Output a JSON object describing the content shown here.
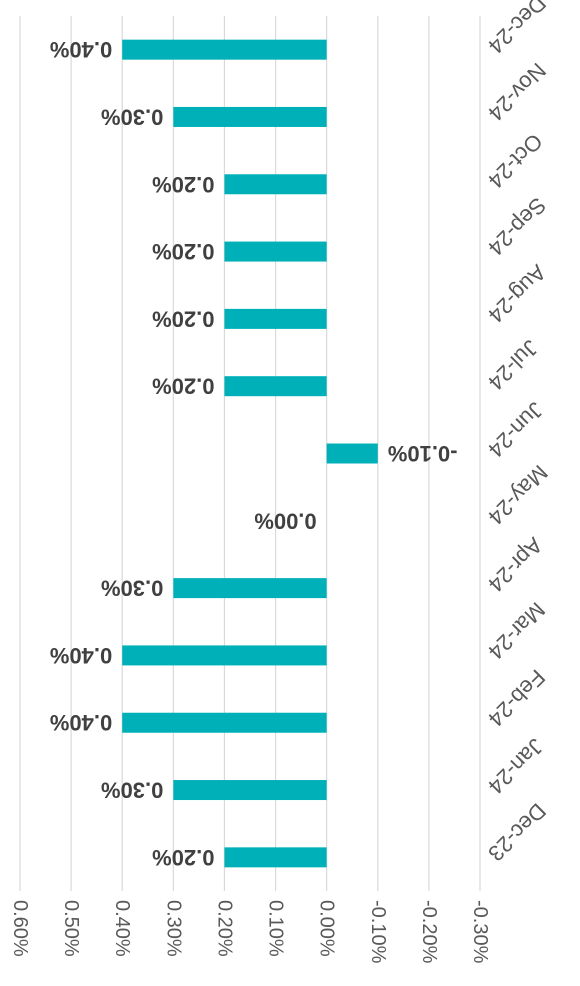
{
  "chart_data": {
    "type": "bar",
    "orientation": "horizontal",
    "rendering": "rotated 180 degrees",
    "categories": [
      "Dec-23",
      "Jan-24",
      "Feb-24",
      "Mar-24",
      "Apr-24",
      "May-24",
      "Jun-24",
      "Jul-24",
      "Aug-24",
      "Sep-24",
      "Oct-24",
      "Nov-24",
      "Dec-24"
    ],
    "values": [
      0.2,
      0.3,
      0.4,
      0.4,
      0.3,
      0.0,
      -0.1,
      0.2,
      0.2,
      0.2,
      0.2,
      0.3,
      0.4
    ],
    "data_labels": [
      "0.20%",
      "0.30%",
      "0.40%",
      "0.40%",
      "0.30%",
      "0.00%",
      "-0.10%",
      "0.20%",
      "0.20%",
      "0.20%",
      "0.20%",
      "0.30%",
      "0.40%"
    ],
    "xlim": [
      -0.3,
      0.6
    ],
    "ticks": [
      -0.3,
      -0.2,
      -0.1,
      0.0,
      0.1,
      0.2,
      0.3,
      0.4,
      0.5,
      0.6
    ],
    "tick_labels": [
      "-0.30%",
      "-0.20%",
      "-0.10%",
      "0.00%",
      "0.10%",
      "0.20%",
      "0.30%",
      "0.40%",
      "0.50%",
      "0.60%"
    ],
    "bar_color": "#00B0B9",
    "gridline_color": "#D9D9D9",
    "grid": true,
    "legend": false,
    "title": "",
    "xlabel": "",
    "ylabel": ""
  }
}
